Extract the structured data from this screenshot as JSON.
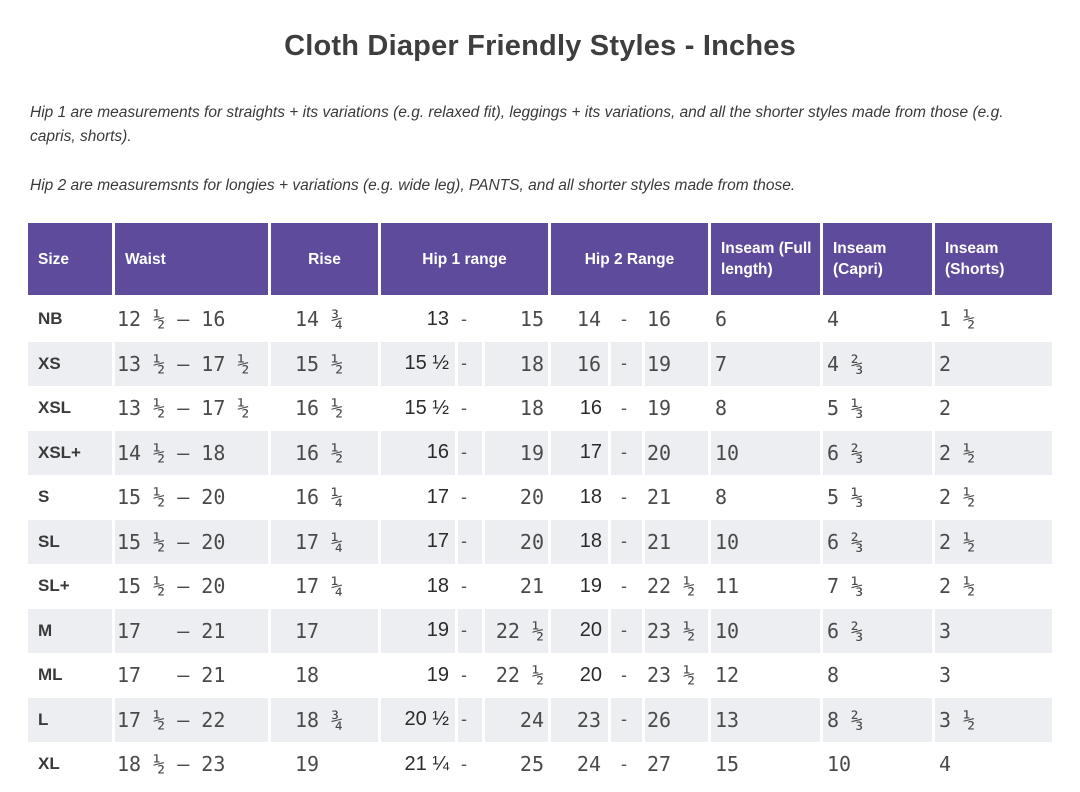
{
  "title": "Cloth Diaper Friendly Styles - Inches",
  "notes": {
    "hip1": "Hip 1 are measurements for straights + its variations (e.g. relaxed fit), leggings + its variations, and all the shorter styles made from those (e.g. capris, shorts).",
    "hip2": "Hip 2 are measuremsnts for longies + variations (e.g. wide leg), PANTS, and all shorter styles made from those."
  },
  "colors": {
    "header_bg": "#5e4b9c",
    "stripe_bg": "#eceef2",
    "header_text": "#ffffff"
  },
  "table": {
    "range_dash": "-",
    "headers": {
      "size": "Size",
      "waist": "Waist",
      "rise": "Rise",
      "hip1": "Hip 1 range",
      "hip2": "Hip 2 Range",
      "inseam_full": "Inseam (Full length)",
      "inseam_capri": "Inseam (Capri)",
      "inseam_shorts": "Inseam (Shorts)"
    },
    "rows": [
      {
        "size": "NB",
        "waist": "12 ½ – 16",
        "rise": "14 ¾",
        "hip1_from": "13",
        "hip1_to": "15",
        "hip2_from": "14",
        "hip2_to": "16",
        "hip2_mono": true,
        "inseam_full": "6",
        "inseam_capri": "4",
        "inseam_shorts": "1 ½"
      },
      {
        "size": "XS",
        "waist": "13 ½ – 17 ½",
        "rise": "15 ½",
        "hip1_from": "15 ½",
        "hip1_to": "18",
        "hip2_from": "16",
        "hip2_to": "19",
        "hip2_mono": true,
        "inseam_full": "7",
        "inseam_capri": "4 ⅔",
        "inseam_shorts": "2"
      },
      {
        "size": "XSL",
        "waist": "13 ½ – 17 ½",
        "rise": "16 ½",
        "hip1_from": "15 ½",
        "hip1_to": "18",
        "hip2_from": "16",
        "hip2_to": "19",
        "hip2_mono": false,
        "inseam_full": "8",
        "inseam_capri": "5 ⅓",
        "inseam_shorts": "2"
      },
      {
        "size": "XSL+",
        "waist": "14 ½ – 18",
        "rise": "16 ½",
        "hip1_from": "16",
        "hip1_to": "19",
        "hip2_from": "17",
        "hip2_to": "20",
        "hip2_mono": false,
        "inseam_full": "10",
        "inseam_capri": "6 ⅔",
        "inseam_shorts": "2 ½"
      },
      {
        "size": "S",
        "waist": "15 ½ – 20",
        "rise": "16 ¼",
        "hip1_from": "17",
        "hip1_to": "20",
        "hip2_from": "18",
        "hip2_to": "21",
        "hip2_mono": false,
        "inseam_full": "8",
        "inseam_capri": "5 ⅓",
        "inseam_shorts": "2 ½"
      },
      {
        "size": "SL",
        "waist": "15 ½ – 20",
        "rise": "17 ¼",
        "hip1_from": "17",
        "hip1_to": "20",
        "hip2_from": "18",
        "hip2_to": "21",
        "hip2_mono": false,
        "inseam_full": "10",
        "inseam_capri": "6 ⅔",
        "inseam_shorts": "2 ½"
      },
      {
        "size": "SL+",
        "waist": "15 ½ – 20",
        "rise": "17 ¼",
        "hip1_from": "18",
        "hip1_to": "21",
        "hip2_from": "19",
        "hip2_to": "22 ½",
        "hip2_mono": false,
        "inseam_full": "11",
        "inseam_capri": "7 ⅓",
        "inseam_shorts": "2 ½"
      },
      {
        "size": "M",
        "waist": "17   – 21",
        "rise": "17",
        "hip1_from": "19",
        "hip1_to": "22 ½",
        "hip2_from": "20",
        "hip2_to": "23 ½",
        "hip2_mono": false,
        "inseam_full": "10",
        "inseam_capri": "6 ⅔",
        "inseam_shorts": "3"
      },
      {
        "size": "ML",
        "waist": "17   – 21",
        "rise": "18",
        "hip1_from": "19",
        "hip1_to": "22 ½",
        "hip2_from": "20",
        "hip2_to": "23 ½",
        "hip2_mono": false,
        "inseam_full": "12",
        "inseam_capri": "8",
        "inseam_shorts": "3"
      },
      {
        "size": "L",
        "waist": "17 ½ – 22",
        "rise": "18 ¾",
        "hip1_from": "20 ½",
        "hip1_to": "24",
        "hip2_from": "23",
        "hip2_to": "26",
        "hip2_mono": true,
        "inseam_full": "13",
        "inseam_capri": "8 ⅔",
        "inseam_shorts": "3 ½"
      },
      {
        "size": "XL",
        "waist": "18 ½ – 23",
        "rise": "19",
        "hip1_from": "21 ¼",
        "hip1_to": "25",
        "hip2_from": "24",
        "hip2_to": "27",
        "hip2_mono": true,
        "inseam_full": "15",
        "inseam_capri": "10",
        "inseam_shorts": "4"
      }
    ]
  }
}
